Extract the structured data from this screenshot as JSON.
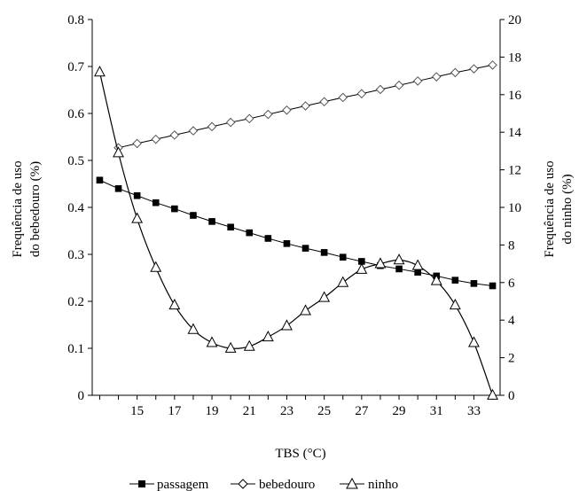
{
  "chart_data": {
    "type": "line",
    "title": "",
    "xlabel": "TBS (°C)",
    "ylabel_left": "Frequência de uso do bebedouro (%)",
    "ylabel_left_lines": [
      "Frequência de uso",
      "do bebedouro (%)"
    ],
    "ylabel_right": "Frequência de uso do ninho (%)",
    "ylabel_right_lines": [
      "Frequência de uso",
      "do ninho (%)"
    ],
    "xlim": [
      12.6,
      34.4
    ],
    "ylim_left": [
      0,
      0.8
    ],
    "ylim_right": [
      0,
      20
    ],
    "x_ticks": [
      15,
      17,
      19,
      21,
      23,
      25,
      27,
      29,
      31,
      33
    ],
    "y_ticks_left": [
      0,
      0.1,
      0.2,
      0.3,
      0.4,
      0.5,
      0.6,
      0.7,
      0.8
    ],
    "y_ticks_right": [
      0,
      2,
      4,
      6,
      8,
      10,
      12,
      14,
      16,
      18,
      20
    ],
    "grid": false,
    "legend_position": "bottom",
    "series": [
      {
        "name": "passagem",
        "axis": "left",
        "marker": "filled-square",
        "x": [
          13.0,
          14.0,
          15.0,
          16.0,
          17.0,
          18.0,
          19.0,
          20.0,
          21.0,
          22.0,
          23.0,
          24.0,
          25.0,
          26.0,
          27.0,
          28.0,
          29.0,
          30.0,
          31.0,
          32.0,
          33.0,
          34.0
        ],
        "y": [
          0.458,
          0.44,
          0.425,
          0.41,
          0.397,
          0.383,
          0.37,
          0.358,
          0.346,
          0.334,
          0.323,
          0.313,
          0.304,
          0.294,
          0.285,
          0.276,
          0.269,
          0.262,
          0.254,
          0.245,
          0.238,
          0.233
        ]
      },
      {
        "name": "bebedouro",
        "axis": "left",
        "marker": "open-diamond",
        "x": [
          14.0,
          15.0,
          16.0,
          17.0,
          18.0,
          19.0,
          20.0,
          21.0,
          22.0,
          23.0,
          24.0,
          25.0,
          26.0,
          27.0,
          28.0,
          29.0,
          30.0,
          31.0,
          32.0,
          33.0,
          34.0
        ],
        "y": [
          0.527,
          0.536,
          0.545,
          0.554,
          0.563,
          0.572,
          0.581,
          0.589,
          0.598,
          0.607,
          0.616,
          0.625,
          0.634,
          0.642,
          0.651,
          0.66,
          0.669,
          0.678,
          0.687,
          0.695,
          0.703
        ]
      },
      {
        "name": "ninho",
        "axis": "right",
        "marker": "open-triangle",
        "x": [
          13.0,
          14.0,
          15.0,
          16.0,
          17.0,
          18.0,
          19.0,
          20.0,
          21.0,
          22.0,
          23.0,
          24.0,
          25.0,
          26.0,
          27.0,
          28.0,
          29.0,
          30.0,
          31.0,
          32.0,
          33.0,
          34.0
        ],
        "y": [
          17.2,
          12.9,
          9.4,
          6.8,
          4.8,
          3.5,
          2.8,
          2.5,
          2.6,
          3.1,
          3.7,
          4.5,
          5.2,
          6.0,
          6.7,
          7.0,
          7.2,
          6.9,
          6.1,
          4.8,
          2.8,
          0.0
        ]
      }
    ]
  },
  "legend": {
    "items": [
      {
        "label": "passagem",
        "marker": "filled-square"
      },
      {
        "label": "bebedouro",
        "marker": "open-diamond"
      },
      {
        "label": "ninho",
        "marker": "open-triangle"
      }
    ]
  }
}
